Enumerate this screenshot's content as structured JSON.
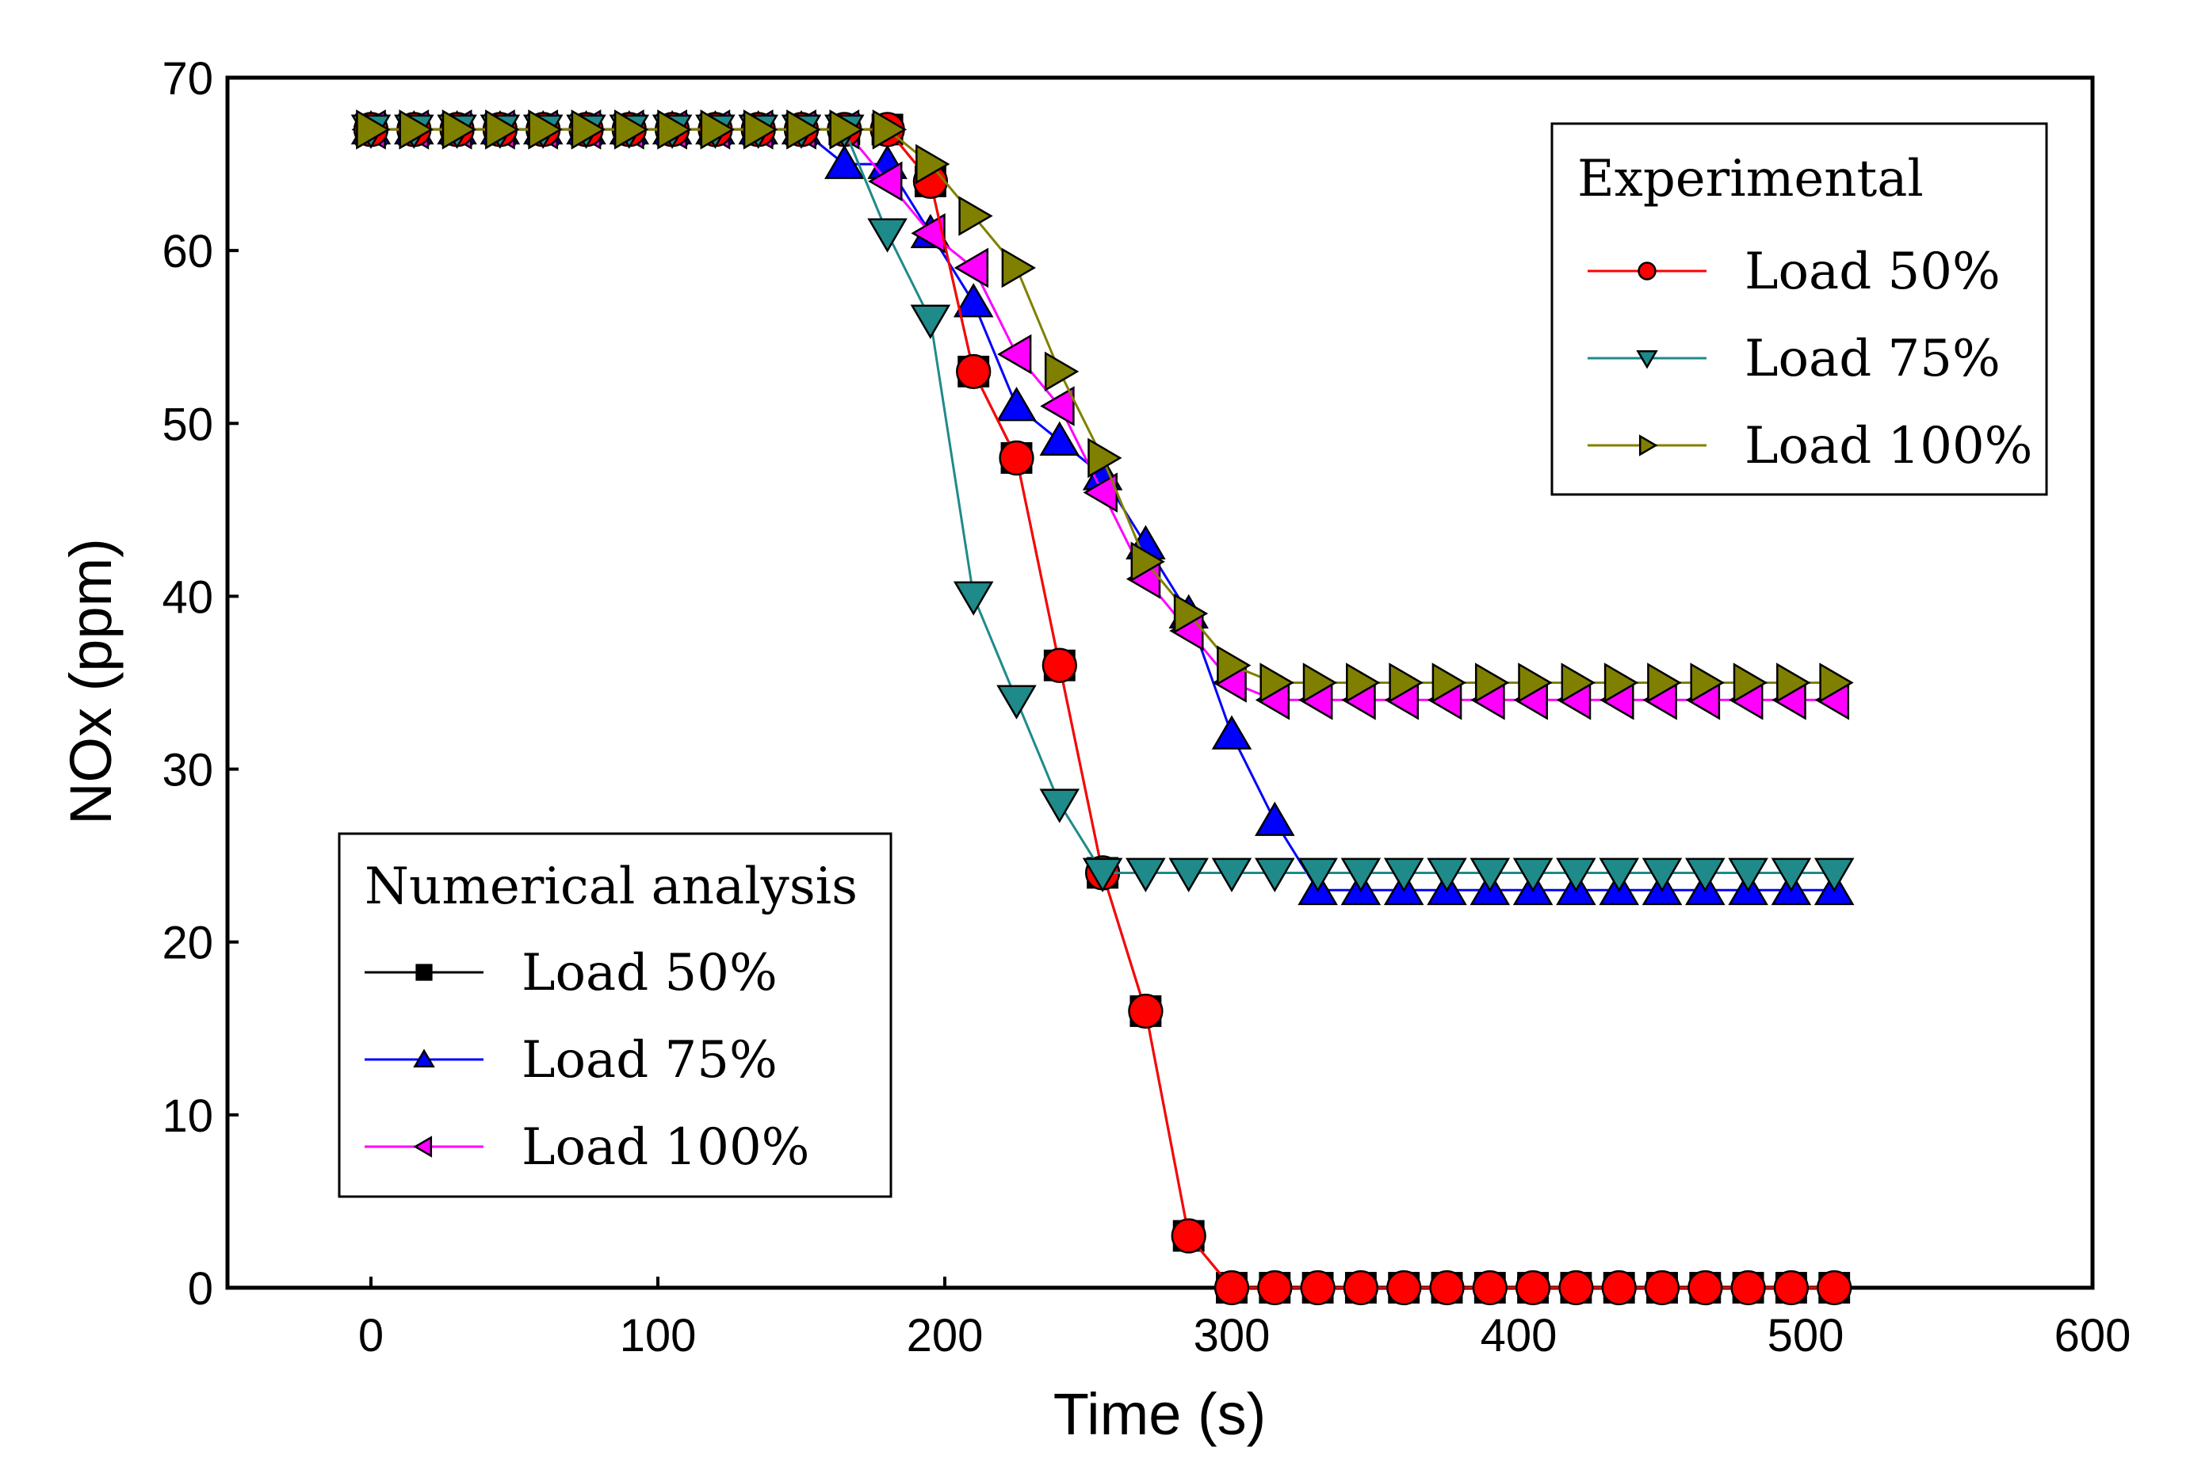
{
  "chart_data": {
    "type": "line",
    "xlabel": "Time (s)",
    "ylabel": "NOx (ppm)",
    "xlim": [
      -50,
      600
    ],
    "ylim": [
      0,
      70
    ],
    "xticks": [
      0,
      100,
      200,
      300,
      400,
      500,
      600
    ],
    "yticks": [
      0,
      10,
      20,
      30,
      40,
      50,
      60,
      70
    ],
    "grid": false,
    "legends": [
      {
        "title": "Experimental",
        "placement": "top-right",
        "entries": [
          "Load 50%",
          "Load 75%",
          "Load 100%"
        ]
      },
      {
        "title": "Numerical analysis",
        "placement": "bottom-left",
        "entries": [
          "Load 50%",
          "Load 75%",
          "Load 100%"
        ]
      }
    ],
    "series": [
      {
        "name": "Load 50%",
        "group": "Numerical analysis",
        "color": "#000000",
        "marker": "square",
        "x": [
          0,
          15,
          30,
          45,
          60,
          75,
          90,
          105,
          120,
          135,
          150,
          165,
          180,
          195,
          210,
          225,
          240,
          255,
          270,
          285,
          300,
          315,
          330,
          345,
          360,
          375,
          390,
          405,
          420,
          435,
          450,
          465,
          480,
          495,
          510
        ],
        "y": [
          67,
          67,
          67,
          67,
          67,
          67,
          67,
          67,
          67,
          67,
          67,
          67,
          67,
          64,
          53,
          48,
          36,
          24,
          16,
          3,
          0,
          0,
          0,
          0,
          0,
          0,
          0,
          0,
          0,
          0,
          0,
          0,
          0,
          0,
          0
        ]
      },
      {
        "name": "Load 75%",
        "group": "Numerical analysis",
        "color": "#0000ff",
        "marker": "triangle-up",
        "x": [
          0,
          15,
          30,
          45,
          60,
          75,
          90,
          105,
          120,
          135,
          150,
          165,
          180,
          195,
          210,
          225,
          240,
          255,
          270,
          285,
          300,
          315,
          330,
          345,
          360,
          375,
          390,
          405,
          420,
          435,
          450,
          465,
          480,
          495,
          510
        ],
        "y": [
          67,
          67,
          67,
          67,
          67,
          67,
          67,
          67,
          67,
          67,
          67,
          65,
          65,
          61,
          57,
          51,
          49,
          47,
          43,
          39,
          32,
          27,
          23,
          23,
          23,
          23,
          23,
          23,
          23,
          23,
          23,
          23,
          23,
          23,
          23
        ]
      },
      {
        "name": "Load 100%",
        "group": "Numerical analysis",
        "color": "#ff00ff",
        "marker": "triangle-left",
        "x": [
          0,
          15,
          30,
          45,
          60,
          75,
          90,
          105,
          120,
          135,
          150,
          165,
          180,
          195,
          210,
          225,
          240,
          255,
          270,
          285,
          300,
          315,
          330,
          345,
          360,
          375,
          390,
          405,
          420,
          435,
          450,
          465,
          480,
          495,
          510
        ],
        "y": [
          67,
          67,
          67,
          67,
          67,
          67,
          67,
          67,
          67,
          67,
          67,
          67,
          64,
          61,
          59,
          54,
          51,
          46,
          41,
          38,
          35,
          34,
          34,
          34,
          34,
          34,
          34,
          34,
          34,
          34,
          34,
          34,
          34,
          34,
          34
        ]
      },
      {
        "name": "Load 50%",
        "group": "Experimental",
        "color": "#ff0000",
        "marker": "circle",
        "x": [
          0,
          15,
          30,
          45,
          60,
          75,
          90,
          105,
          120,
          135,
          150,
          165,
          180,
          195,
          210,
          225,
          240,
          255,
          270,
          285,
          300,
          315,
          330,
          345,
          360,
          375,
          390,
          405,
          420,
          435,
          450,
          465,
          480,
          495,
          510
        ],
        "y": [
          67,
          67,
          67,
          67,
          67,
          67,
          67,
          67,
          67,
          67,
          67,
          67,
          67,
          64,
          53,
          48,
          36,
          24,
          16,
          3,
          0,
          0,
          0,
          0,
          0,
          0,
          0,
          0,
          0,
          0,
          0,
          0,
          0,
          0,
          0
        ]
      },
      {
        "name": "Load 75%",
        "group": "Experimental",
        "color": "#1f8a8a",
        "marker": "triangle-down",
        "x": [
          0,
          15,
          30,
          45,
          60,
          75,
          90,
          105,
          120,
          135,
          150,
          165,
          180,
          195,
          210,
          225,
          240,
          255,
          270,
          285,
          300,
          315,
          330,
          345,
          360,
          375,
          390,
          405,
          420,
          435,
          450,
          465,
          480,
          495,
          510
        ],
        "y": [
          67,
          67,
          67,
          67,
          67,
          67,
          67,
          67,
          67,
          67,
          67,
          67,
          61,
          56,
          40,
          34,
          28,
          24,
          24,
          24,
          24,
          24,
          24,
          24,
          24,
          24,
          24,
          24,
          24,
          24,
          24,
          24,
          24,
          24,
          24
        ]
      },
      {
        "name": "Load 100%",
        "group": "Experimental",
        "color": "#808000",
        "marker": "triangle-right",
        "x": [
          0,
          15,
          30,
          45,
          60,
          75,
          90,
          105,
          120,
          135,
          150,
          165,
          180,
          195,
          210,
          225,
          240,
          255,
          270,
          285,
          300,
          315,
          330,
          345,
          360,
          375,
          390,
          405,
          420,
          435,
          450,
          465,
          480,
          495,
          510
        ],
        "y": [
          67,
          67,
          67,
          67,
          67,
          67,
          67,
          67,
          67,
          67,
          67,
          67,
          67,
          65,
          62,
          59,
          53,
          48,
          42,
          39,
          36,
          35,
          35,
          35,
          35,
          35,
          35,
          35,
          35,
          35,
          35,
          35,
          35,
          35,
          35
        ]
      }
    ]
  }
}
